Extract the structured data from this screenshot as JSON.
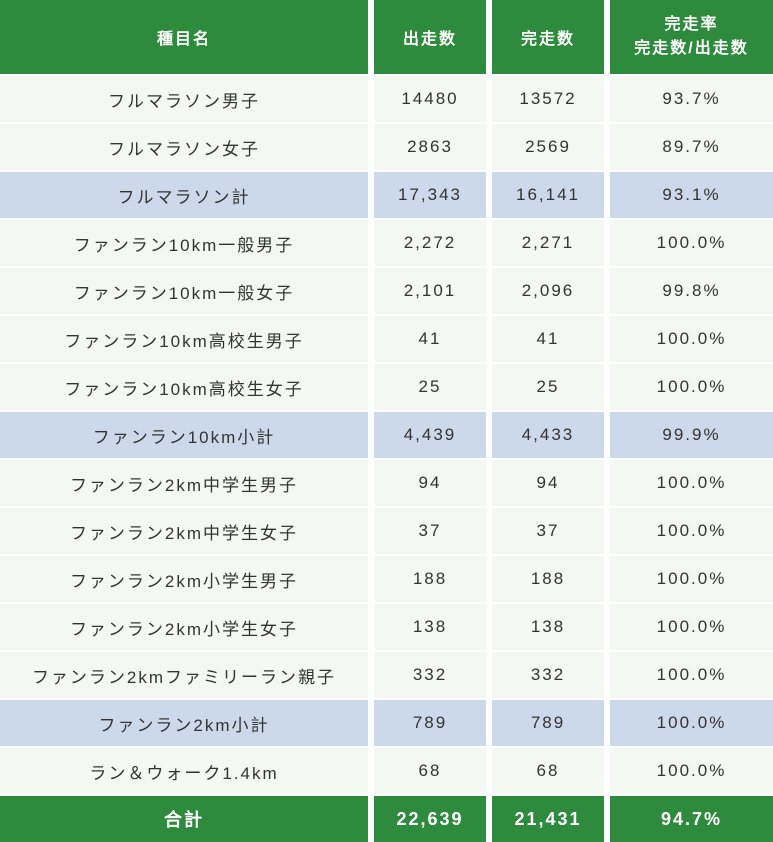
{
  "colors": {
    "header_bg": "#2e8b3d",
    "total_bg": "#2e8b3d",
    "row_bg": "#f3f9f2",
    "subtotal_bg": "#ccd9ea",
    "header_text": "#ffffff",
    "body_text": "#333333"
  },
  "chart_data": {
    "type": "table",
    "title": "",
    "header": {
      "event": "種目名",
      "starters": "出走数",
      "finishers": "完走数",
      "rate_line1": "完走率",
      "rate_line2": "完走数/出走数"
    },
    "rows": [
      {
        "event": "フルマラソン男子",
        "starters": "14480",
        "finishers": "13572",
        "rate": "93.7%",
        "row_type": "data"
      },
      {
        "event": "フルマラソン女子",
        "starters": "2863",
        "finishers": "2569",
        "rate": "89.7%",
        "row_type": "data"
      },
      {
        "event": "フルマラソン計",
        "starters": "17,343",
        "finishers": "16,141",
        "rate": "93.1%",
        "row_type": "subtotal"
      },
      {
        "event": "ファンラン10km一般男子",
        "starters": "2,272",
        "finishers": "2,271",
        "rate": "100.0%",
        "row_type": "data"
      },
      {
        "event": "ファンラン10km一般女子",
        "starters": "2,101",
        "finishers": "2,096",
        "rate": "99.8%",
        "row_type": "data"
      },
      {
        "event": "ファンラン10km高校生男子",
        "starters": "41",
        "finishers": "41",
        "rate": "100.0%",
        "row_type": "data"
      },
      {
        "event": "ファンラン10km高校生女子",
        "starters": "25",
        "finishers": "25",
        "rate": "100.0%",
        "row_type": "data"
      },
      {
        "event": "ファンラン10km小計",
        "starters": "4,439",
        "finishers": "4,433",
        "rate": "99.9%",
        "row_type": "subtotal"
      },
      {
        "event": "ファンラン2km中学生男子",
        "starters": "94",
        "finishers": "94",
        "rate": "100.0%",
        "row_type": "data"
      },
      {
        "event": "ファンラン2km中学生女子",
        "starters": "37",
        "finishers": "37",
        "rate": "100.0%",
        "row_type": "data"
      },
      {
        "event": "ファンラン2km小学生男子",
        "starters": "188",
        "finishers": "188",
        "rate": "100.0%",
        "row_type": "data"
      },
      {
        "event": "ファンラン2km小学生女子",
        "starters": "138",
        "finishers": "138",
        "rate": "100.0%",
        "row_type": "data"
      },
      {
        "event": "ファンラン2kmファミリーラン親子",
        "starters": "332",
        "finishers": "332",
        "rate": "100.0%",
        "row_type": "data"
      },
      {
        "event": "ファンラン2km小計",
        "starters": "789",
        "finishers": "789",
        "rate": "100.0%",
        "row_type": "subtotal"
      },
      {
        "event": "ラン＆ウォーク1.4km",
        "starters": "68",
        "finishers": "68",
        "rate": "100.0%",
        "row_type": "data"
      }
    ],
    "total": {
      "event": "合計",
      "starters": "22,639",
      "finishers": "21,431",
      "rate": "94.7%",
      "row_type": "total"
    }
  }
}
